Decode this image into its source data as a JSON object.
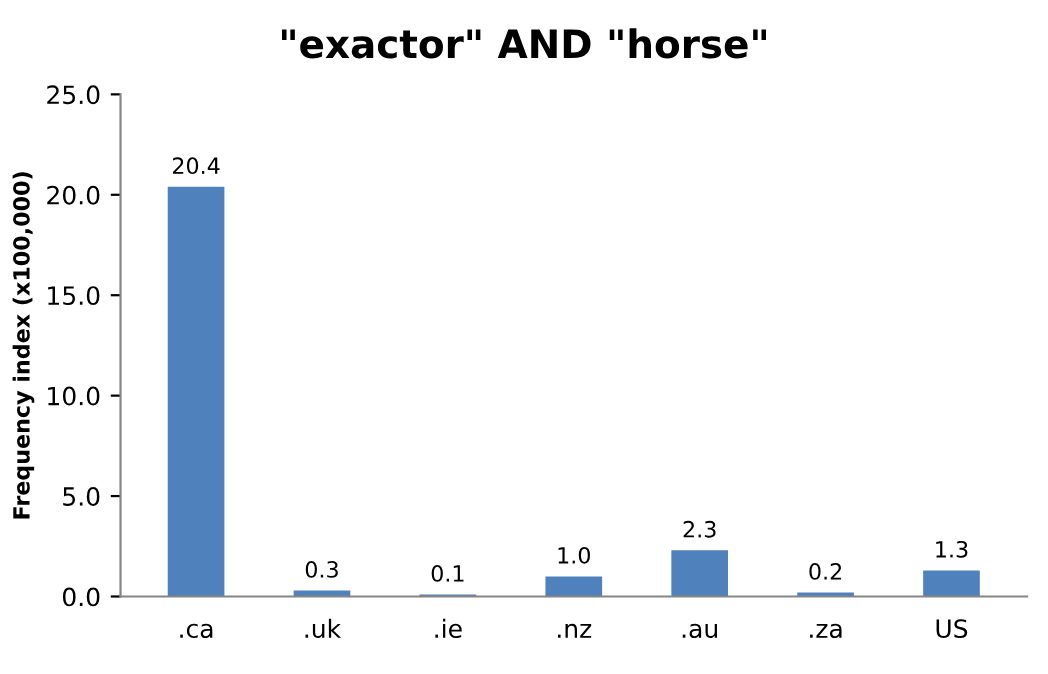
{
  "chart_data": {
    "type": "bar",
    "title": "\"exactor\" AND \"horse\"",
    "ylabel": "Frequency index (x100,000)",
    "categories": [
      ".ca",
      ".uk",
      ".ie",
      ".nz",
      ".au",
      ".za",
      "US"
    ],
    "values": [
      20.4,
      0.3,
      0.1,
      1.0,
      2.3,
      0.2,
      1.3
    ],
    "value_labels": [
      "20.4",
      "0.3",
      "0.1",
      "1.0",
      "2.3",
      "0.2",
      "1.3"
    ],
    "color": "#4f81bd",
    "ylim": [
      0,
      25
    ],
    "yticks": [
      {
        "value": 0,
        "label": "0.0"
      },
      {
        "value": 5,
        "label": "5.0"
      },
      {
        "value": 10,
        "label": "10.0"
      },
      {
        "value": 15,
        "label": "15.0"
      },
      {
        "value": 20,
        "label": "20.0"
      },
      {
        "value": 25,
        "label": "25.0"
      }
    ],
    "grid": false,
    "legend": false
  }
}
